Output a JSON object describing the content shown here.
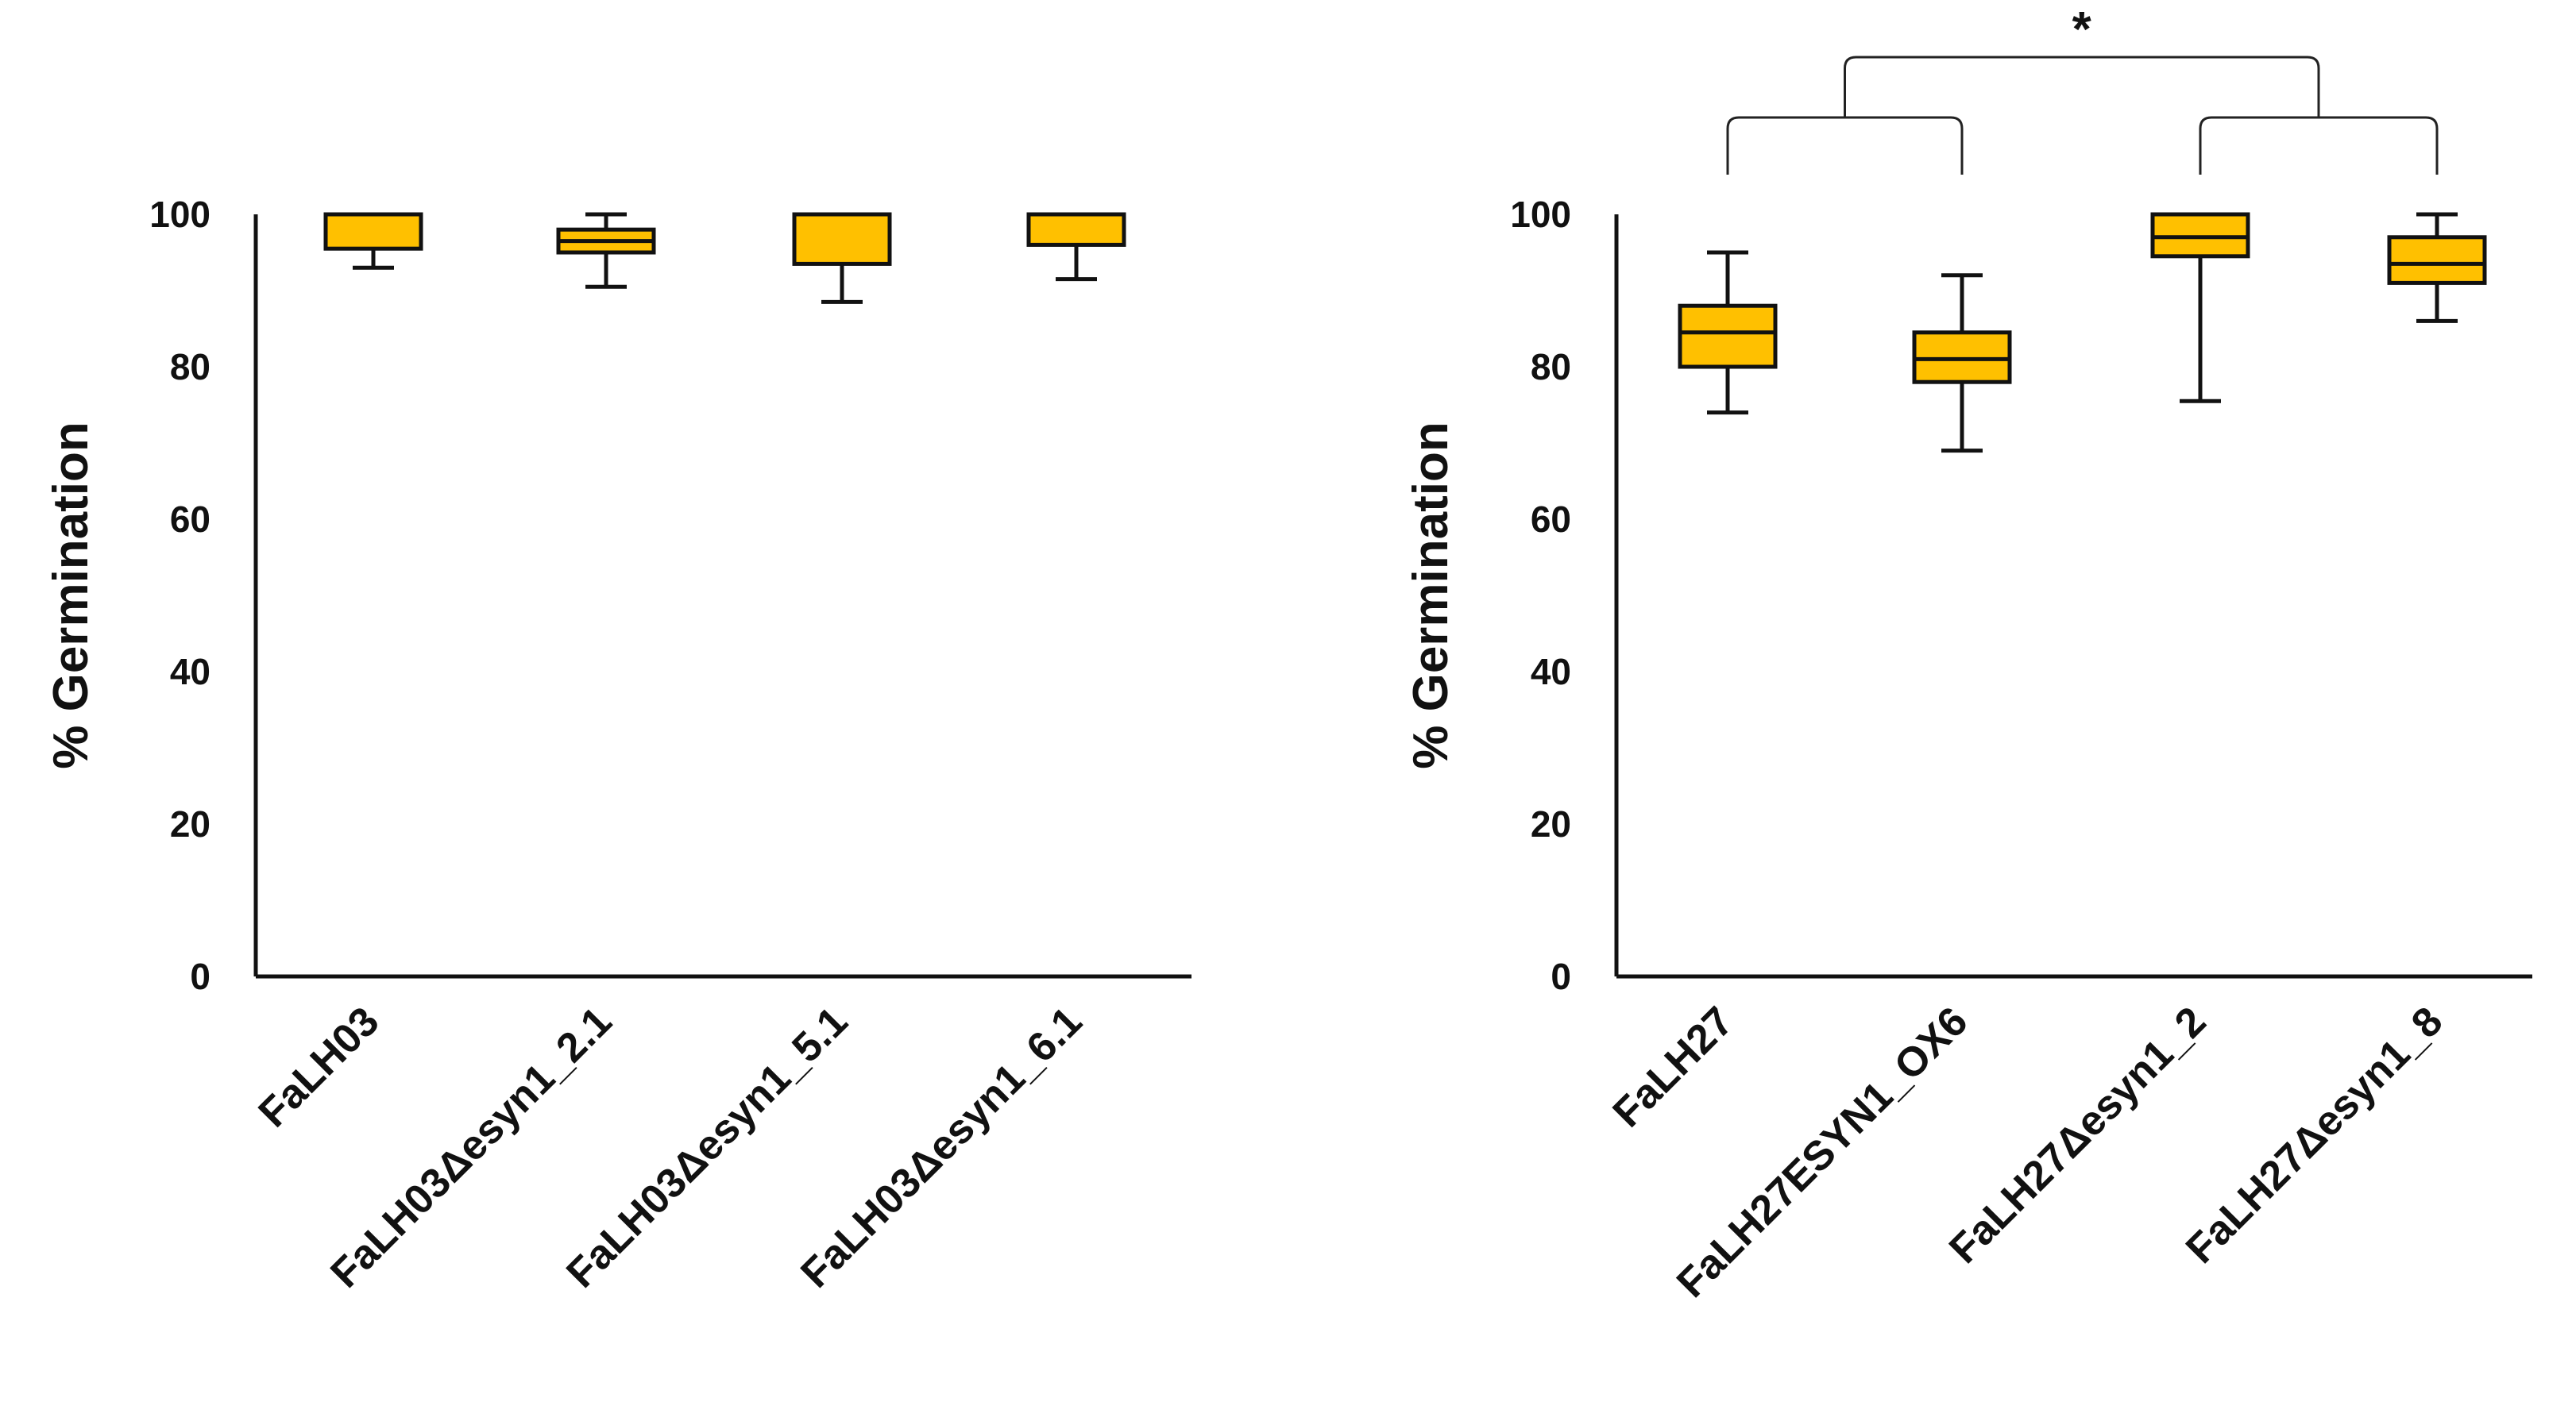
{
  "chart_data": [
    {
      "type": "box",
      "ylabel": "% Germination",
      "ylim": [
        0,
        100
      ],
      "yticks": [
        0,
        20,
        40,
        60,
        80,
        100
      ],
      "categories": [
        "FaLH03",
        "FaLH03Δesyn1_2.1",
        "FaLH03Δesyn1_5.1",
        "FaLH03Δesyn1_6.1"
      ],
      "boxes": [
        {
          "min": 93,
          "q1": 95.5,
          "median": 100,
          "q3": 100,
          "max": 100
        },
        {
          "min": 90.5,
          "q1": 95,
          "median": 96.5,
          "q3": 98,
          "max": 100
        },
        {
          "min": 88.5,
          "q1": 93.5,
          "median": 100,
          "q3": 100,
          "max": 100
        },
        {
          "min": 91.5,
          "q1": 96,
          "median": 100,
          "q3": 100,
          "max": 100
        }
      ],
      "significance": []
    },
    {
      "type": "box",
      "ylabel": "% Germination",
      "ylim": [
        0,
        100
      ],
      "yticks": [
        0,
        20,
        40,
        60,
        80,
        100
      ],
      "categories": [
        "FaLH27",
        "FaLH27ESYN1_OX6",
        "FaLH27Δesyn1_2",
        "FaLH27Δesyn1_8"
      ],
      "boxes": [
        {
          "min": 74,
          "q1": 80,
          "median": 84.5,
          "q3": 88,
          "max": 95
        },
        {
          "min": 69,
          "q1": 78,
          "median": 81,
          "q3": 84.5,
          "max": 92
        },
        {
          "min": 75.5,
          "q1": 94.5,
          "median": 97,
          "q3": 100,
          "max": 100
        },
        {
          "min": 86,
          "q1": 91,
          "median": 93.5,
          "q3": 97,
          "max": 100
        }
      ],
      "significance": [
        {
          "groups": [
            [
              0,
              1
            ],
            [
              2,
              3
            ]
          ],
          "label": "*"
        }
      ]
    }
  ],
  "style": {
    "box_fill": "#FFC000",
    "line_color": "#111111",
    "bracket_color": "#222222"
  }
}
